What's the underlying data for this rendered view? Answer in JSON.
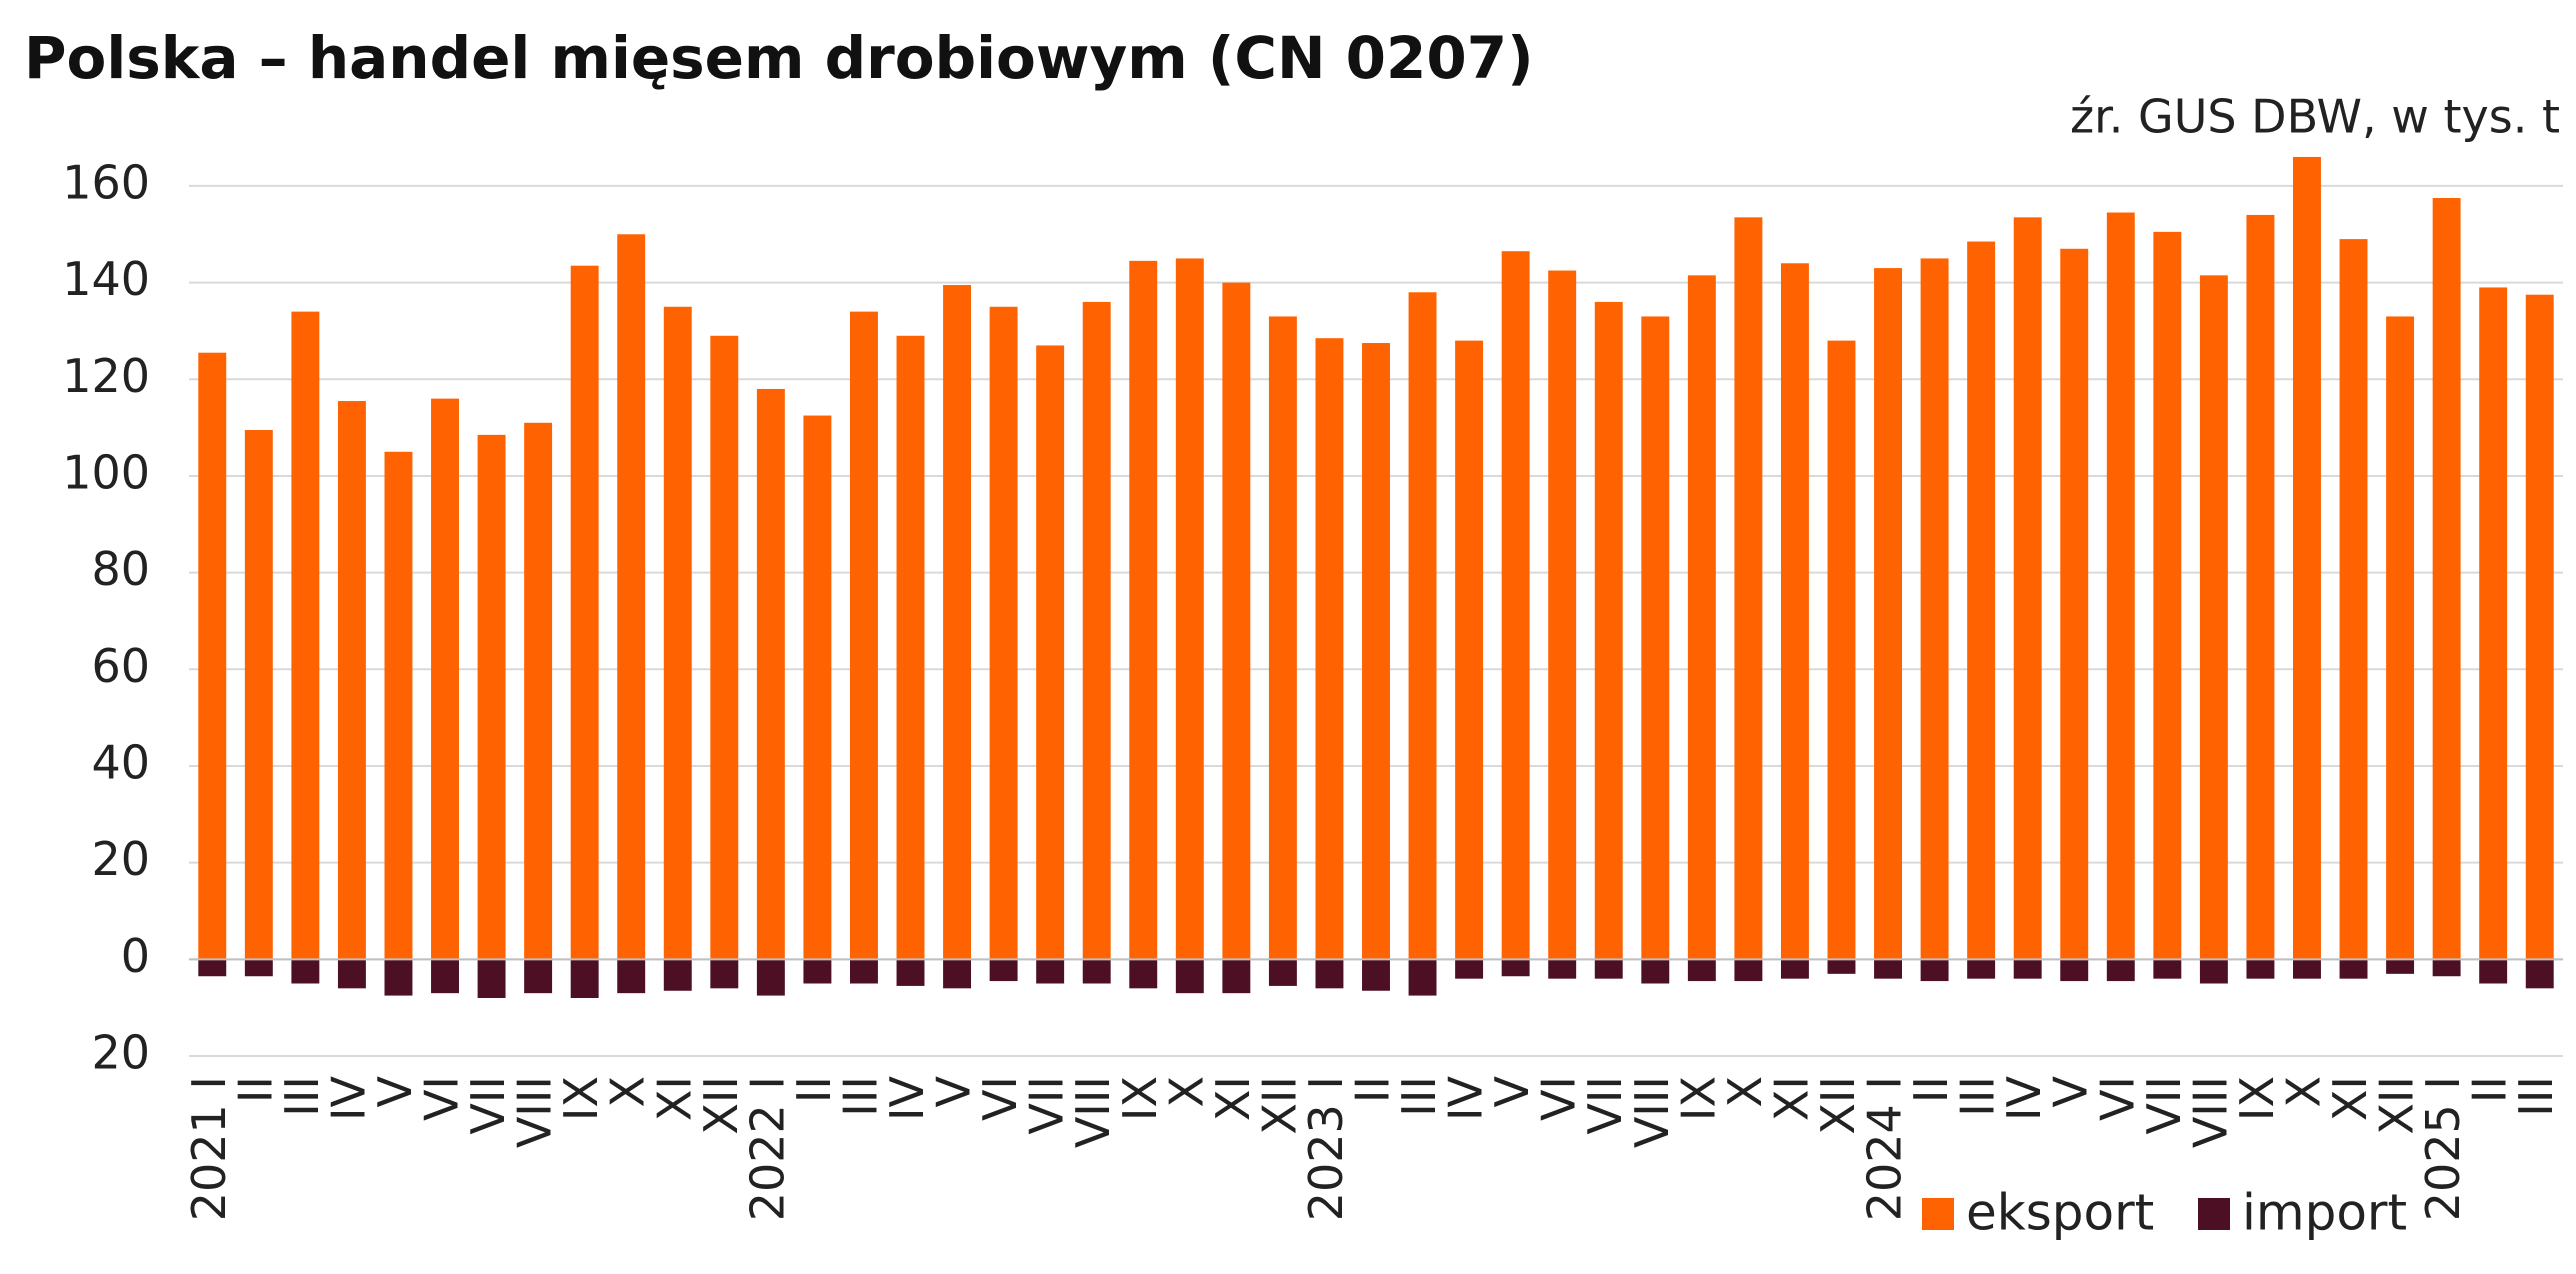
{
  "chart_data": {
    "type": "bar",
    "title": "Polska – handel mięsem drobiowym (CN 0207)",
    "subtitle": "źr. GUS DBW, w tys. t",
    "categories": [
      "2021 I",
      "II",
      "III",
      "IV",
      "V",
      "VI",
      "VII",
      "VIII",
      "IX",
      "X",
      "XI",
      "XII",
      "2022 I",
      "II",
      "III",
      "IV",
      "V",
      "VI",
      "VII",
      "VIII",
      "IX",
      "X",
      "XI",
      "XII",
      "2023 I",
      "II",
      "III",
      "IV",
      "V",
      "VI",
      "VII",
      "VIII",
      "IX",
      "X",
      "XI",
      "XII",
      "2024 I",
      "II",
      "III",
      "IV",
      "V",
      "VI",
      "VII",
      "VIII",
      "IX",
      "X",
      "XI",
      "XII",
      "2025 I",
      "II",
      "III"
    ],
    "series": [
      {
        "name": "eksport",
        "color": "#ff6200",
        "values": [
          125.5,
          109.5,
          134,
          115.5,
          105,
          116,
          108.5,
          111,
          143.5,
          150,
          135,
          129,
          118,
          112.5,
          134,
          129,
          139.5,
          135,
          127,
          136,
          144.5,
          145,
          140,
          133,
          128.5,
          127.5,
          138,
          128,
          146.5,
          142.5,
          136,
          133,
          141.5,
          153.5,
          144,
          128,
          143,
          145,
          148.5,
          153.5,
          147,
          154.5,
          150.5,
          141.5,
          154,
          166,
          149,
          133,
          157.5,
          139,
          137.5
        ]
      },
      {
        "name": "import",
        "color": "#4d0f23",
        "values": [
          -3.5,
          -3.5,
          -5,
          -6,
          -7.5,
          -7,
          -8,
          -7,
          -8,
          -7,
          -6.5,
          -6,
          -7.5,
          -5,
          -5,
          -5.5,
          -6,
          -4.5,
          -5,
          -5,
          -6,
          -7,
          -7,
          -5.5,
          -6,
          -6.5,
          -7.5,
          -4,
          -3.5,
          -4,
          -4,
          -5,
          -4.5,
          -4.5,
          -4,
          -3,
          -4,
          -4.5,
          -4,
          -4,
          -4.5,
          -4.5,
          -4,
          -5,
          -4,
          -4,
          -4,
          -3,
          -3.5,
          -5,
          -6
        ]
      }
    ],
    "ylim": [
      -20,
      170
    ],
    "yticks": [
      {
        "value": -20,
        "label": "20"
      },
      0,
      20,
      40,
      60,
      80,
      100,
      120,
      140,
      160
    ],
    "grid": true,
    "legend": "bottom-right"
  }
}
